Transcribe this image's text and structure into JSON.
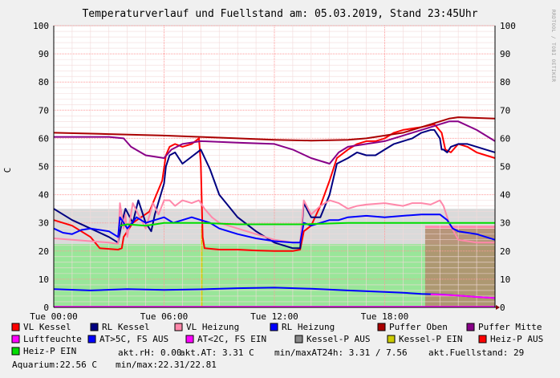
{
  "chart_data": {
    "type": "line",
    "title": "Temperaturverlauf und Fuellstand am: 05.03.2019, Stand 23:45Uhr",
    "ylabel": "C",
    "side_text": "RRDTOOL / TOBI OETIKER",
    "ylim": [
      0,
      100
    ],
    "xlim_hours": [
      0,
      24
    ],
    "y_ticks": [
      "0",
      "10",
      "20",
      "30",
      "40",
      "50",
      "60",
      "70",
      "80",
      "90",
      "100"
    ],
    "x_ticks": [
      {
        "h": 0,
        "label": "Tue 00:00"
      },
      {
        "h": 6,
        "label": "Tue 06:00"
      },
      {
        "h": 12,
        "label": "Tue 12:00"
      },
      {
        "h": 18,
        "label": "Tue 18:00"
      }
    ],
    "grid": true,
    "series": [
      {
        "name": "VL Kessel",
        "color": "#ff0000",
        "points": [
          [
            0,
            31
          ],
          [
            1,
            29
          ],
          [
            2,
            25
          ],
          [
            2.5,
            21
          ],
          [
            3.5,
            20.5
          ],
          [
            3.7,
            21
          ],
          [
            3.8,
            25
          ],
          [
            4.3,
            30
          ],
          [
            5.2,
            34
          ],
          [
            5.9,
            45
          ],
          [
            6.1,
            54
          ],
          [
            6.3,
            57
          ],
          [
            6.6,
            58
          ],
          [
            7,
            57
          ],
          [
            7.5,
            58
          ],
          [
            7.9,
            60
          ],
          [
            8,
            51
          ],
          [
            8.1,
            25
          ],
          [
            8.2,
            21
          ],
          [
            9,
            20.5
          ],
          [
            10,
            20.5
          ],
          [
            11,
            20.2
          ],
          [
            12,
            20
          ],
          [
            13,
            20
          ],
          [
            13.4,
            20.5
          ],
          [
            13.6,
            27
          ],
          [
            14,
            29
          ],
          [
            14.5,
            36
          ],
          [
            15,
            45
          ],
          [
            15.4,
            53
          ],
          [
            16,
            56
          ],
          [
            16.5,
            58
          ],
          [
            17,
            59
          ],
          [
            17.5,
            59
          ],
          [
            18,
            60
          ],
          [
            18.5,
            62
          ],
          [
            19,
            63
          ],
          [
            20,
            64
          ],
          [
            20.7,
            65
          ],
          [
            21.1,
            62
          ],
          [
            21.3,
            56
          ],
          [
            21.6,
            55
          ],
          [
            22,
            58
          ],
          [
            22.5,
            57
          ],
          [
            23,
            55
          ],
          [
            23.5,
            54
          ],
          [
            24,
            53
          ]
        ]
      },
      {
        "name": "RL Kessel",
        "color": "#000080",
        "points": [
          [
            0,
            35
          ],
          [
            0.5,
            33
          ],
          [
            1,
            31
          ],
          [
            2,
            28
          ],
          [
            3,
            25
          ],
          [
            3.5,
            23
          ],
          [
            3.7,
            30
          ],
          [
            3.9,
            35
          ],
          [
            4.3,
            30
          ],
          [
            4.6,
            38
          ],
          [
            5,
            30
          ],
          [
            5.3,
            27
          ],
          [
            5.5,
            33
          ],
          [
            6,
            44
          ],
          [
            6.1,
            50
          ],
          [
            6.3,
            54
          ],
          [
            6.6,
            55
          ],
          [
            7,
            51
          ],
          [
            7.4,
            53
          ],
          [
            7.8,
            55
          ],
          [
            8,
            56
          ],
          [
            8.5,
            49
          ],
          [
            9,
            40
          ],
          [
            10,
            32
          ],
          [
            11,
            27
          ],
          [
            12,
            23
          ],
          [
            13,
            21
          ],
          [
            13.4,
            21
          ],
          [
            13.6,
            37
          ],
          [
            14,
            32
          ],
          [
            14.5,
            32
          ],
          [
            15,
            40
          ],
          [
            15.4,
            51
          ],
          [
            16,
            53
          ],
          [
            16.5,
            55
          ],
          [
            17,
            54
          ],
          [
            17.5,
            54
          ],
          [
            18,
            56
          ],
          [
            18.5,
            58
          ],
          [
            19,
            59
          ],
          [
            19.5,
            60
          ],
          [
            20,
            62
          ],
          [
            20.5,
            63
          ],
          [
            20.7,
            63
          ],
          [
            21,
            60
          ],
          [
            21.1,
            56
          ],
          [
            21.2,
            56
          ],
          [
            21.4,
            55
          ],
          [
            21.6,
            57
          ],
          [
            22,
            58
          ],
          [
            22.5,
            58
          ],
          [
            23,
            57
          ],
          [
            23.5,
            56
          ],
          [
            24,
            55
          ]
        ]
      },
      {
        "name": "VL Heizung",
        "color": "#ff88aa",
        "points": [
          [
            0,
            24.5
          ],
          [
            1,
            24
          ],
          [
            2,
            23.5
          ],
          [
            3,
            23
          ],
          [
            3.5,
            22.5
          ],
          [
            3.6,
            37
          ],
          [
            3.8,
            28
          ],
          [
            3.9,
            33
          ],
          [
            4,
            25
          ],
          [
            4.3,
            37
          ],
          [
            4.6,
            33
          ],
          [
            5,
            28
          ],
          [
            5.4,
            37
          ],
          [
            5.7,
            33
          ],
          [
            6,
            38
          ],
          [
            6.3,
            38
          ],
          [
            6.6,
            36
          ],
          [
            7,
            38
          ],
          [
            7.5,
            37
          ],
          [
            7.9,
            38
          ],
          [
            8.2,
            35
          ],
          [
            8.6,
            32
          ],
          [
            9,
            30
          ],
          [
            10,
            28
          ],
          [
            11,
            26
          ],
          [
            12,
            24
          ],
          [
            13,
            23
          ],
          [
            13.4,
            23
          ],
          [
            13.6,
            38
          ],
          [
            14,
            33
          ],
          [
            14.5,
            36
          ],
          [
            15,
            38
          ],
          [
            15.5,
            37
          ],
          [
            16,
            35
          ],
          [
            16.5,
            36
          ],
          [
            17,
            36.5
          ],
          [
            18,
            37
          ],
          [
            19,
            36
          ],
          [
            19.5,
            37
          ],
          [
            20,
            37
          ],
          [
            20.5,
            36.5
          ],
          [
            21,
            38
          ],
          [
            21.2,
            36
          ],
          [
            21.5,
            30
          ],
          [
            22,
            24
          ],
          [
            23,
            23
          ],
          [
            24,
            23
          ]
        ]
      },
      {
        "name": "RL Heizung",
        "color": "#0000ff",
        "points": [
          [
            0,
            28
          ],
          [
            0.5,
            26.5
          ],
          [
            1,
            26
          ],
          [
            1.5,
            27.5
          ],
          [
            2,
            28
          ],
          [
            3,
            27
          ],
          [
            3.5,
            25
          ],
          [
            3.6,
            32
          ],
          [
            4,
            28
          ],
          [
            4.5,
            32
          ],
          [
            5,
            30
          ],
          [
            5.5,
            31
          ],
          [
            6,
            32
          ],
          [
            6.5,
            30
          ],
          [
            7,
            31
          ],
          [
            7.5,
            32
          ],
          [
            8,
            31
          ],
          [
            8.5,
            30
          ],
          [
            9,
            28
          ],
          [
            10,
            26
          ],
          [
            11,
            24.5
          ],
          [
            12,
            23.5
          ],
          [
            13,
            23
          ],
          [
            13.4,
            23
          ],
          [
            13.6,
            30
          ],
          [
            14,
            29
          ],
          [
            14.5,
            30
          ],
          [
            15,
            31
          ],
          [
            15.5,
            31
          ],
          [
            16,
            32
          ],
          [
            17,
            32.5
          ],
          [
            18,
            32
          ],
          [
            19,
            32.5
          ],
          [
            20,
            33
          ],
          [
            21,
            33
          ],
          [
            21.4,
            31
          ],
          [
            21.7,
            28
          ],
          [
            22,
            27
          ],
          [
            23,
            26
          ],
          [
            24,
            24
          ]
        ]
      },
      {
        "name": "Puffer Oben",
        "color": "#aa0000",
        "points": [
          [
            0,
            62
          ],
          [
            3,
            61.5
          ],
          [
            6,
            61
          ],
          [
            8,
            60.5
          ],
          [
            10,
            60
          ],
          [
            12,
            59.5
          ],
          [
            14,
            59.2
          ],
          [
            16,
            59.5
          ],
          [
            17,
            60
          ],
          [
            18,
            61
          ],
          [
            19,
            62
          ],
          [
            20,
            64
          ],
          [
            21,
            66
          ],
          [
            21.5,
            67
          ],
          [
            22,
            67.5
          ],
          [
            24,
            67
          ]
        ]
      },
      {
        "name": "Puffer Mitte",
        "color": "#880088",
        "points": [
          [
            0,
            60.5
          ],
          [
            3,
            60.5
          ],
          [
            3.8,
            60
          ],
          [
            4.2,
            57
          ],
          [
            5,
            54
          ],
          [
            6,
            53
          ],
          [
            6.4,
            56
          ],
          [
            7,
            58
          ],
          [
            8,
            59
          ],
          [
            10,
            58.5
          ],
          [
            12,
            58
          ],
          [
            13,
            56
          ],
          [
            14,
            53
          ],
          [
            15,
            51
          ],
          [
            15.5,
            55
          ],
          [
            16,
            57
          ],
          [
            17,
            58
          ],
          [
            18,
            59
          ],
          [
            19,
            61
          ],
          [
            20,
            63
          ],
          [
            20.5,
            64
          ],
          [
            21,
            65
          ],
          [
            21.5,
            66
          ],
          [
            22,
            66
          ],
          [
            23,
            63
          ],
          [
            24,
            59
          ]
        ]
      },
      {
        "name": "Luftfeuchte",
        "color": "#ff00ff",
        "points": [
          [
            0,
            0.2
          ],
          [
            24,
            0.2
          ]
        ]
      },
      {
        "name": "AT>5C, FS AUS",
        "color": "#0000ff",
        "points": [
          [
            0,
            6.5
          ],
          [
            2,
            6
          ],
          [
            4,
            6.5
          ],
          [
            6,
            6.2
          ],
          [
            8,
            6.4
          ],
          [
            10,
            6.8
          ],
          [
            12,
            7
          ],
          [
            14,
            6.6
          ],
          [
            16,
            6
          ],
          [
            18,
            5.5
          ],
          [
            19,
            5.2
          ],
          [
            20,
            4.8
          ],
          [
            21,
            4.6
          ],
          [
            22,
            4.2
          ],
          [
            23,
            3.7
          ],
          [
            24,
            3.3
          ]
        ]
      },
      {
        "name": "AT<2C, FS EIN",
        "color": "#ff00ff",
        "points": [
          [
            20.5,
            4.6
          ],
          [
            21,
            4.5
          ],
          [
            22,
            4.2
          ],
          [
            23,
            3.7
          ],
          [
            24,
            3.3
          ]
        ]
      },
      {
        "name": "Heiz-P EIN",
        "color": "#00dd00",
        "points": [
          [
            3.6,
            29
          ],
          [
            4,
            29.5
          ],
          [
            5,
            29
          ],
          [
            6,
            30
          ],
          [
            8,
            30
          ],
          [
            10,
            29.5
          ],
          [
            12,
            29.5
          ],
          [
            13.6,
            29.5
          ],
          [
            16,
            30
          ],
          [
            18,
            30
          ],
          [
            20,
            30
          ],
          [
            22,
            30
          ],
          [
            24,
            30
          ]
        ]
      }
    ],
    "footer": {
      "akt_rh": "akt.rH: 0.00",
      "akt_at": "akt.AT: 3.31 C",
      "minmax_at": "min/maxAT24h: 3.31 / 7.56",
      "fuellstand": "akt.Fuellstand:   29",
      "aquarium": "Aquarium:22.56 C",
      "aquarium_minmax": "min/max:22.31/22.81"
    }
  },
  "legend": [
    {
      "label": "VL Kessel",
      "color": "#ff0000"
    },
    {
      "label": "RL Kessel",
      "color": "#000080"
    },
    {
      "label": "VL Heizung",
      "color": "#ff88aa"
    },
    {
      "label": "RL Heizung",
      "color": "#0000ff"
    },
    {
      "label": "Puffer Oben",
      "color": "#aa0000"
    },
    {
      "label": "Puffer Mitte",
      "color": "#880088"
    },
    {
      "label": "Luftfeuchte",
      "color": "#ff00ff"
    },
    {
      "label": "AT>5C, FS AUS",
      "color": "#0000ff"
    },
    {
      "label": "AT<2C, FS EIN",
      "color": "#ff00ff"
    },
    {
      "label": "Kessel-P AUS",
      "color": "#888888"
    },
    {
      "label": "Kessel-P EIN",
      "color": "#cccc00"
    },
    {
      "label": "Heiz-P AUS",
      "color": "#ff0000"
    },
    {
      "label": "Heiz-P EIN",
      "color": "#00dd00"
    }
  ]
}
